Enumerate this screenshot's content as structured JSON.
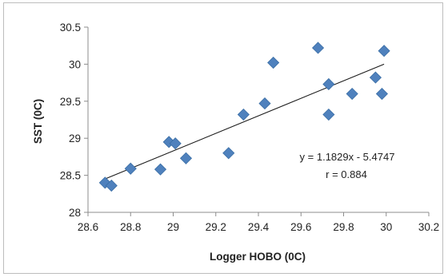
{
  "chart_data": {
    "type": "scatter",
    "title": "",
    "xlabel": "Logger HOBO (0C)",
    "ylabel": "SST (0C)",
    "xlim": [
      28.6,
      30.2
    ],
    "ylim": [
      28,
      30.5
    ],
    "x_ticks": [
      "28.6",
      "28.8",
      "29",
      "29.2",
      "29.4",
      "29.6",
      "29.8",
      "30",
      "30.2"
    ],
    "y_ticks": [
      "28",
      "28.5",
      "29",
      "29.5",
      "30",
      "30.5"
    ],
    "grid": false,
    "legend": "none",
    "marker": "diamond",
    "marker_color": "#4f81bd",
    "trendline_color": "#1a1a1a",
    "points": [
      {
        "x": 28.68,
        "y": 28.4
      },
      {
        "x": 28.71,
        "y": 28.36
      },
      {
        "x": 28.8,
        "y": 28.59
      },
      {
        "x": 28.94,
        "y": 28.58
      },
      {
        "x": 28.98,
        "y": 28.95
      },
      {
        "x": 29.01,
        "y": 28.93
      },
      {
        "x": 29.06,
        "y": 28.73
      },
      {
        "x": 29.26,
        "y": 28.8
      },
      {
        "x": 29.33,
        "y": 29.32
      },
      {
        "x": 29.43,
        "y": 29.47
      },
      {
        "x": 29.47,
        "y": 30.02
      },
      {
        "x": 29.68,
        "y": 30.22
      },
      {
        "x": 29.73,
        "y": 29.73
      },
      {
        "x": 29.73,
        "y": 29.32
      },
      {
        "x": 29.84,
        "y": 29.6
      },
      {
        "x": 29.95,
        "y": 29.82
      },
      {
        "x": 29.98,
        "y": 29.6
      },
      {
        "x": 29.99,
        "y": 30.18
      }
    ],
    "trendline": {
      "slope": 1.1829,
      "intercept": -5.4747,
      "x_range": [
        28.67,
        29.99
      ]
    },
    "annotations": [
      "y = 1.1829x - 5.4747",
      "r = 0.884"
    ]
  }
}
